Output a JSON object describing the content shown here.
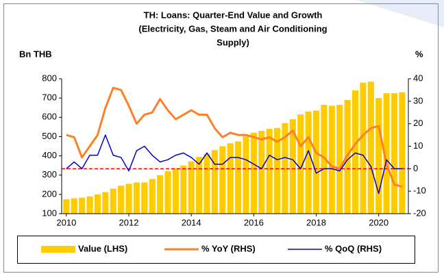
{
  "chart_data": {
    "type": "combo",
    "title": [
      "TH: Loans: Quarter-End Value and Growth",
      "(Electricity, Gas, Steam and Air Conditioning",
      "Supply)"
    ],
    "y_label": "Bn THB",
    "y2_label": "%",
    "x": [
      2010,
      2010.25,
      2010.5,
      2010.75,
      2011,
      2011.25,
      2011.5,
      2011.75,
      2012,
      2012.25,
      2012.5,
      2012.75,
      2013,
      2013.25,
      2013.5,
      2013.75,
      2014,
      2014.25,
      2014.5,
      2014.75,
      2015,
      2015.25,
      2015.5,
      2015.75,
      2016,
      2016.25,
      2016.5,
      2016.75,
      2017,
      2017.25,
      2017.5,
      2017.75,
      2018,
      2018.25,
      2018.5,
      2018.75,
      2019,
      2019.25,
      2019.5,
      2019.75,
      2020,
      2020.25,
      2020.5,
      2020.75
    ],
    "xlim": [
      2009.85,
      2020.95
    ],
    "xticks": [
      2010,
      2012,
      2014,
      2016,
      2018,
      2020
    ],
    "ylim": [
      100,
      800
    ],
    "yticks": [
      100,
      200,
      300,
      400,
      500,
      600,
      700,
      800
    ],
    "y2lim": [
      -20,
      40
    ],
    "y2ticks": [
      -20,
      -10,
      0,
      10,
      20,
      30,
      40
    ],
    "reference_line": {
      "axis": "y2",
      "value": 0,
      "color": "#ff0000",
      "style": "dashed"
    },
    "legend": "bottom",
    "series": [
      {
        "name": "Value (LHS)",
        "type": "bar",
        "axis": "y",
        "color": "#ffcc00",
        "values": [
          175,
          180,
          183,
          190,
          200,
          212,
          230,
          245,
          255,
          262,
          262,
          280,
          300,
          320,
          335,
          350,
          372,
          395,
          410,
          430,
          450,
          465,
          475,
          500,
          520,
          530,
          540,
          545,
          570,
          590,
          615,
          630,
          635,
          665,
          660,
          665,
          690,
          740,
          780,
          785,
          700,
          725,
          725,
          730
        ]
      },
      {
        "name": "% YoY (RHS)",
        "type": "line",
        "axis": "y2",
        "color": "#ff7f27",
        "width": 3,
        "values": [
          15,
          14,
          5,
          10,
          15,
          27,
          36,
          35,
          28,
          20,
          24,
          25,
          31,
          26,
          22,
          24,
          26,
          24,
          24,
          18,
          14,
          16,
          15,
          15,
          14,
          13,
          14,
          12,
          14,
          17,
          10,
          14,
          7,
          5,
          1,
          0,
          6,
          11,
          15,
          18,
          19,
          2,
          -7,
          -8
        ]
      },
      {
        "name": "% QoQ (RHS)",
        "type": "line",
        "axis": "y2",
        "color": "#0000cc",
        "width": 1.5,
        "values": [
          0,
          3,
          0,
          6,
          6,
          15,
          6,
          5,
          -1,
          8,
          10,
          6,
          3,
          4,
          6,
          7,
          5,
          2,
          7,
          2,
          2,
          5,
          5,
          4,
          2,
          0,
          6,
          4,
          5,
          4,
          0,
          8,
          -2,
          0,
          0,
          -1,
          4,
          7,
          6,
          1,
          -11,
          4,
          0,
          0
        ]
      }
    ]
  }
}
